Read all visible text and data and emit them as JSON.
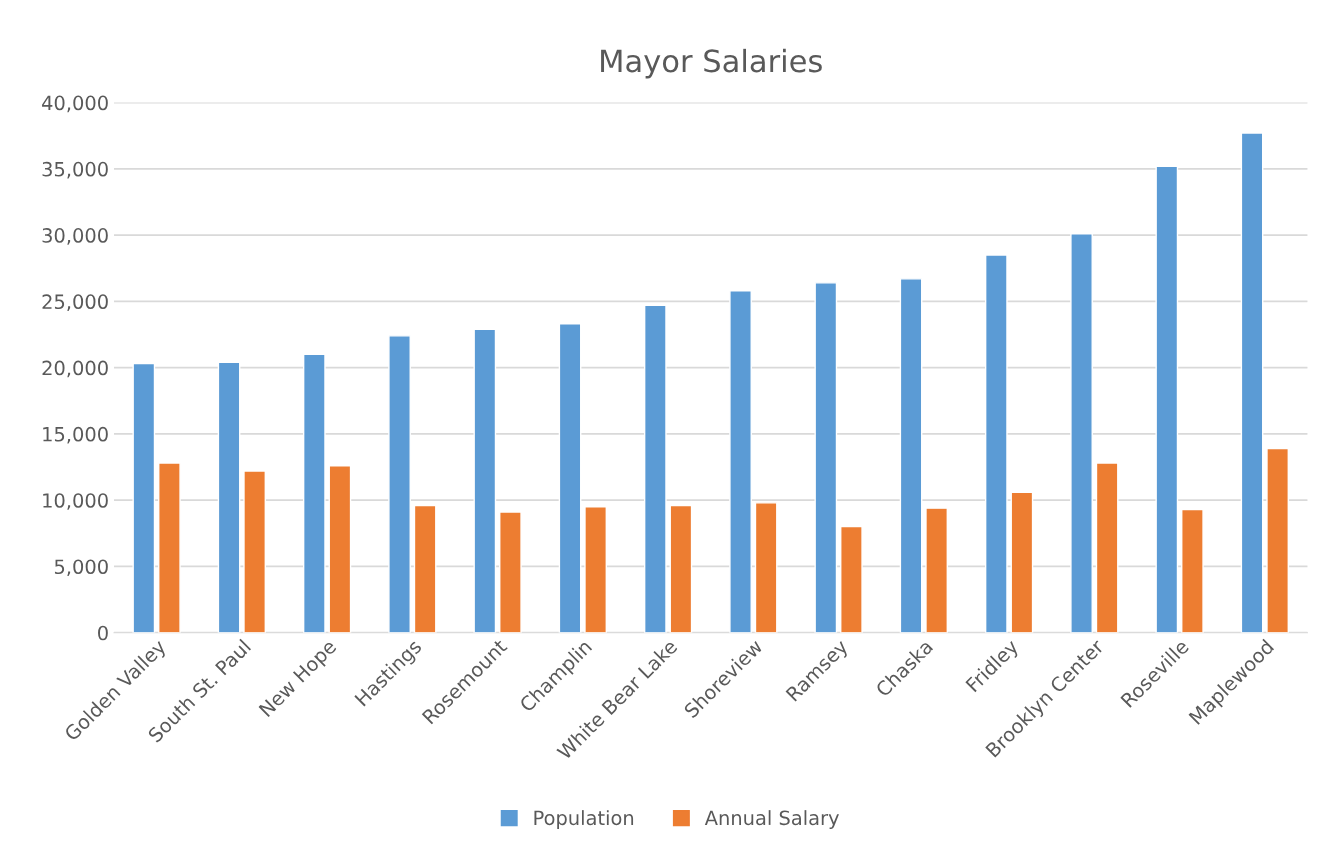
{
  "chart_data": {
    "type": "bar",
    "title": "Mayor Salaries",
    "categories": [
      "Golden Valley",
      "South St. Paul",
      "New Hope",
      "Hastings",
      "Rosemount",
      "Champlin",
      "White Bear Lake",
      "Shoreview",
      "Ramsey",
      "Chaska",
      "Fridley",
      "Brooklyn Center",
      "Roseville",
      "Maplewood"
    ],
    "series": [
      {
        "name": "Population",
        "color": "#5b9bd5",
        "values": [
          20300,
          20400,
          21000,
          22400,
          22900,
          23300,
          24700,
          25800,
          26400,
          26700,
          28500,
          30100,
          35200,
          37700
        ]
      },
      {
        "name": "Annual Salary",
        "color": "#ed7d31",
        "values": [
          12800,
          12200,
          12600,
          9600,
          9100,
          9500,
          9600,
          9800,
          8000,
          9400,
          10600,
          12800,
          9300,
          13900
        ]
      }
    ],
    "ylim": [
      0,
      40000
    ],
    "yticks": [
      {
        "value": 0,
        "label": "0"
      },
      {
        "value": 5000,
        "label": "5,000"
      },
      {
        "value": 10000,
        "label": "10,000"
      },
      {
        "value": 15000,
        "label": "15,000"
      },
      {
        "value": 20000,
        "label": "20,000"
      },
      {
        "value": 25000,
        "label": "25,000"
      },
      {
        "value": 30000,
        "label": "30,000"
      },
      {
        "value": 35000,
        "label": "35,000"
      },
      {
        "value": 40000,
        "label": "40,000"
      }
    ],
    "grid": "y",
    "legend": "bottom"
  }
}
